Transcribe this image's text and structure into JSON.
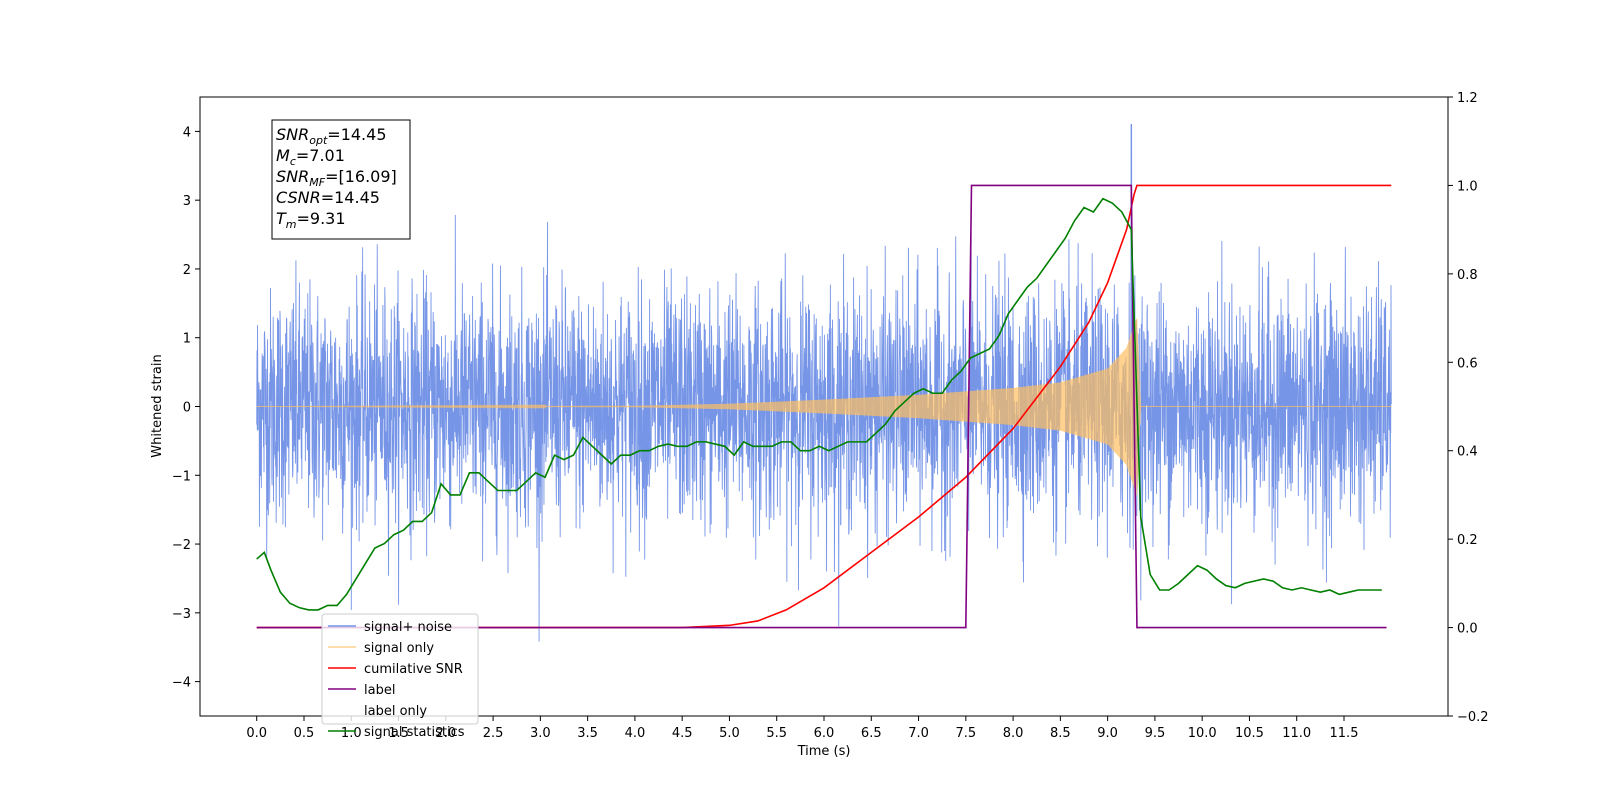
{
  "chart_data": {
    "type": "line",
    "xlabel": "Time (s)",
    "ylabel": "Whitened strain",
    "xlim": [
      -0.6,
      12.6
    ],
    "ylim_left": [
      -4.5,
      4.5
    ],
    "ylim_right": [
      -0.2,
      1.2
    ],
    "x_ticks": [
      0.0,
      0.5,
      1.0,
      1.5,
      2.0,
      2.5,
      3.0,
      3.5,
      4.0,
      4.5,
      5.0,
      5.5,
      6.0,
      6.5,
      7.0,
      7.5,
      8.0,
      8.5,
      9.0,
      9.5,
      10.0,
      10.5,
      11.0,
      11.5
    ],
    "x_tick_labels": [
      "0.0",
      "0.5",
      "1.0",
      "1.5",
      "2.0",
      "2.5",
      "3.0",
      "3.5",
      "4.0",
      "4.5",
      "5.0",
      "5.5",
      "6.0",
      "6.5",
      "7.0",
      "7.5",
      "8.0",
      "8.5",
      "9.0",
      "9.5",
      "10.0",
      "10.5",
      "11.0",
      "11.5"
    ],
    "y_ticks_left": [
      -4,
      -3,
      -2,
      -1,
      0,
      1,
      2,
      3,
      4
    ],
    "y_tick_labels_left": [
      "−4",
      "−3",
      "−2",
      "−1",
      "0",
      "1",
      "2",
      "3",
      "4"
    ],
    "y_ticks_right": [
      -0.2,
      0.0,
      0.2,
      0.4,
      0.6,
      0.8,
      1.0,
      1.2
    ],
    "y_tick_labels_right": [
      "−0.2",
      "0.0",
      "0.2",
      "0.4",
      "0.6",
      "0.8",
      "1.0",
      "1.2"
    ],
    "grid": false,
    "legend_position": "lower-left",
    "annotation_box": {
      "position": "top-left",
      "lines": [
        {
          "main": "SNR",
          "sub": "opt",
          "value": "=14.45"
        },
        {
          "main": "M",
          "sub": "c",
          "value": "=7.01"
        },
        {
          "main": "SNR",
          "sub": "MF",
          "value": "=[16.09]"
        },
        {
          "main": "CSNR",
          "sub": "",
          "value": "=14.45"
        },
        {
          "main": "T",
          "sub": "m",
          "value": "=9.31"
        }
      ]
    },
    "series": [
      {
        "name": "signal+ noise",
        "axis": "left",
        "color": "#6f8fe6",
        "style": "noise",
        "x_range": [
          0.0,
          12.0
        ],
        "noise_std": 0.85,
        "peak_value": 4.1,
        "peak_x": 9.25
      },
      {
        "name": "signal only",
        "axis": "left",
        "color": "#ffbf60",
        "style": "chirp",
        "x_range": [
          0.0,
          12.0
        ],
        "merger_time": 9.31,
        "envelope": [
          [
            0.0,
            0.0
          ],
          [
            4.0,
            0.01
          ],
          [
            5.0,
            0.04
          ],
          [
            6.0,
            0.1
          ],
          [
            7.0,
            0.17
          ],
          [
            8.0,
            0.27
          ],
          [
            8.5,
            0.35
          ],
          [
            9.0,
            0.55
          ],
          [
            9.2,
            0.85
          ],
          [
            9.31,
            1.3
          ],
          [
            9.35,
            0.0
          ],
          [
            12.0,
            0.0
          ]
        ]
      },
      {
        "name": "cumilative SNR",
        "axis": "right",
        "color": "#ff0000",
        "x": [
          0.0,
          4.5,
          5.0,
          5.3,
          5.6,
          6.0,
          6.5,
          7.0,
          7.5,
          8.0,
          8.5,
          8.8,
          9.0,
          9.1,
          9.2,
          9.28,
          9.31,
          12.0
        ],
        "y": [
          0.0,
          0.0,
          0.005,
          0.015,
          0.04,
          0.09,
          0.17,
          0.25,
          0.34,
          0.45,
          0.59,
          0.69,
          0.78,
          0.84,
          0.9,
          0.98,
          1.0,
          1.0
        ]
      },
      {
        "name": "label",
        "axis": "right",
        "color": "#800080",
        "x": [
          0.0,
          7.5,
          7.56,
          9.25,
          9.31,
          11.95
        ],
        "y": [
          0.0,
          0.0,
          1.0,
          1.0,
          0.0,
          0.0
        ]
      },
      {
        "name": "label only",
        "axis": "right",
        "color": "#800080",
        "style": "hidden"
      },
      {
        "name": "signal statistics",
        "axis": "right",
        "color": "#008000",
        "x": [
          0.0,
          0.08,
          0.15,
          0.25,
          0.35,
          0.45,
          0.55,
          0.65,
          0.75,
          0.85,
          0.95,
          1.05,
          1.15,
          1.25,
          1.35,
          1.45,
          1.55,
          1.65,
          1.75,
          1.85,
          1.95,
          2.05,
          2.15,
          2.25,
          2.35,
          2.45,
          2.55,
          2.65,
          2.75,
          2.85,
          2.95,
          3.05,
          3.15,
          3.25,
          3.35,
          3.45,
          3.55,
          3.65,
          3.75,
          3.85,
          3.95,
          4.05,
          4.15,
          4.25,
          4.35,
          4.45,
          4.55,
          4.65,
          4.75,
          4.85,
          4.95,
          5.05,
          5.15,
          5.25,
          5.35,
          5.45,
          5.55,
          5.65,
          5.75,
          5.85,
          5.95,
          6.05,
          6.15,
          6.25,
          6.35,
          6.45,
          6.55,
          6.65,
          6.75,
          6.85,
          6.95,
          7.05,
          7.15,
          7.25,
          7.35,
          7.45,
          7.55,
          7.65,
          7.75,
          7.85,
          7.95,
          8.05,
          8.15,
          8.25,
          8.35,
          8.45,
          8.55,
          8.65,
          8.75,
          8.85,
          8.95,
          9.05,
          9.15,
          9.25,
          9.35,
          9.45,
          9.55,
          9.65,
          9.75,
          9.85,
          9.95,
          10.05,
          10.15,
          10.25,
          10.35,
          10.45,
          10.55,
          10.65,
          10.75,
          10.85,
          10.95,
          11.05,
          11.15,
          11.25,
          11.35,
          11.45,
          11.55,
          11.65,
          11.75,
          11.9
        ],
        "y": [
          0.155,
          0.17,
          0.13,
          0.08,
          0.055,
          0.045,
          0.04,
          0.04,
          0.05,
          0.05,
          0.075,
          0.11,
          0.145,
          0.18,
          0.19,
          0.21,
          0.22,
          0.24,
          0.24,
          0.26,
          0.325,
          0.3,
          0.3,
          0.35,
          0.35,
          0.33,
          0.31,
          0.31,
          0.31,
          0.33,
          0.35,
          0.34,
          0.39,
          0.38,
          0.39,
          0.43,
          0.41,
          0.39,
          0.37,
          0.39,
          0.39,
          0.4,
          0.4,
          0.41,
          0.415,
          0.41,
          0.41,
          0.42,
          0.42,
          0.415,
          0.41,
          0.39,
          0.42,
          0.41,
          0.41,
          0.41,
          0.42,
          0.42,
          0.4,
          0.4,
          0.41,
          0.4,
          0.41,
          0.42,
          0.42,
          0.42,
          0.44,
          0.46,
          0.49,
          0.51,
          0.53,
          0.54,
          0.53,
          0.53,
          0.56,
          0.58,
          0.61,
          0.62,
          0.63,
          0.66,
          0.71,
          0.74,
          0.77,
          0.79,
          0.82,
          0.85,
          0.88,
          0.92,
          0.95,
          0.94,
          0.97,
          0.96,
          0.94,
          0.9,
          0.25,
          0.12,
          0.085,
          0.085,
          0.1,
          0.12,
          0.14,
          0.13,
          0.11,
          0.095,
          0.09,
          0.1,
          0.105,
          0.11,
          0.105,
          0.09,
          0.085,
          0.09,
          0.085,
          0.08,
          0.085,
          0.075,
          0.08,
          0.085,
          0.085,
          0.085
        ]
      }
    ]
  }
}
